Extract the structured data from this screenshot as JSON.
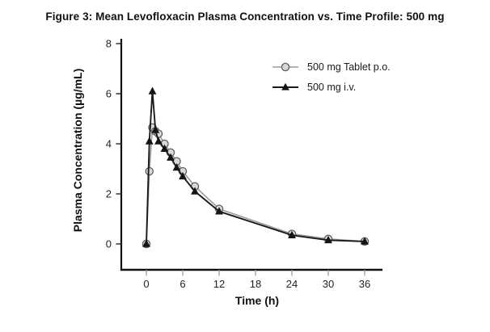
{
  "title": "Figure 3: Mean Levofloxacin Plasma Concentration vs. Time Profile: 500 mg",
  "chart_data": {
    "type": "line",
    "title": "Figure 3: Mean Levofloxacin Plasma Concentration vs. Time Profile: 500 mg",
    "xlabel": "Time (h)",
    "ylabel": "Plasma Concentration (µg/mL)",
    "xticks": [
      0,
      6,
      12,
      18,
      24,
      30,
      36
    ],
    "yticks": [
      0,
      2,
      4,
      6,
      8
    ],
    "xlim": [
      -4,
      39
    ],
    "ylim": [
      0,
      8
    ],
    "grid": false,
    "legend_position": "upper-right-inside",
    "x": [
      0,
      0.5,
      1,
      1.5,
      2,
      3,
      4,
      5,
      6,
      8,
      12,
      24,
      30,
      36
    ],
    "series": [
      {
        "name": "500 mg Tablet p.o.",
        "marker": "circle",
        "line_color": "#9a9a9a",
        "marker_fill": "#d8d8d8",
        "marker_stroke": "#5e5e5e",
        "values": [
          0,
          2.9,
          4.65,
          4.5,
          4.4,
          4.0,
          3.65,
          3.3,
          2.9,
          2.3,
          1.4,
          0.4,
          0.2,
          0.1
        ]
      },
      {
        "name": "500 mg i.v.",
        "marker": "triangle",
        "line_color": "#1a1a1a",
        "marker_fill": "#141414",
        "marker_stroke": "#141414",
        "values": [
          0,
          4.1,
          6.1,
          4.55,
          4.1,
          3.8,
          3.45,
          3.05,
          2.7,
          2.1,
          1.3,
          0.35,
          0.15,
          0.1
        ]
      }
    ],
    "axis_color": "#111111",
    "x_tick_color": "#999999",
    "y_tick_color": "#222222"
  }
}
